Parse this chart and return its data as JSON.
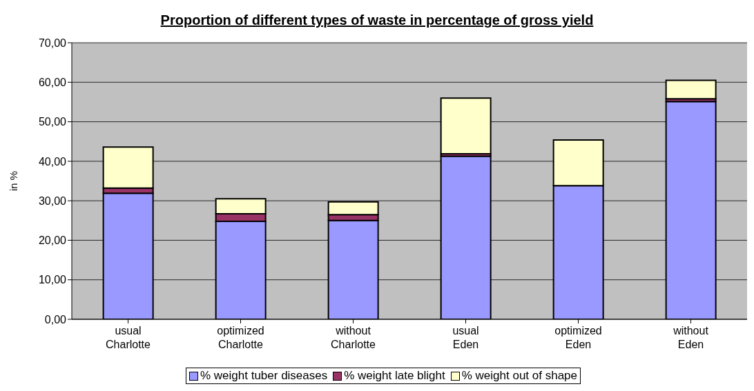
{
  "chart_data": {
    "type": "bar",
    "title": "Proportion of different types of waste in percentage of gross yield",
    "ylabel": "in %",
    "categories": [
      "usual\nCharlotte",
      "optimized\nCharlotte",
      "without\nCharlotte",
      "usual\nEden",
      "optimized\nEden",
      "without\nEden"
    ],
    "stacked": true,
    "series": [
      {
        "name": "% weight tuber diseases",
        "color": "#9999ff",
        "values": [
          31.9,
          24.8,
          25.0,
          41.3,
          33.8,
          55.1
        ]
      },
      {
        "name": "% weight late blight",
        "color": "#993366",
        "values": [
          1.3,
          1.9,
          1.5,
          0.6,
          null,
          0.7
        ]
      },
      {
        "name": "% weight out of shape",
        "color": "#ffffcc",
        "values": [
          10.4,
          3.8,
          3.2,
          14.1,
          11.6,
          4.7
        ]
      }
    ],
    "ylim": [
      0,
      70
    ],
    "yticks": [
      {
        "value": 0,
        "label": "0,00"
      },
      {
        "value": 10,
        "label": "10,00"
      },
      {
        "value": 20,
        "label": "20,00"
      },
      {
        "value": 30,
        "label": "30,00"
      },
      {
        "value": 40,
        "label": "40,00"
      },
      {
        "value": 50,
        "label": "50,00"
      },
      {
        "value": 60,
        "label": "60,00"
      },
      {
        "value": 70,
        "label": "70,00"
      }
    ],
    "grid": "y",
    "legend": "bottom"
  }
}
